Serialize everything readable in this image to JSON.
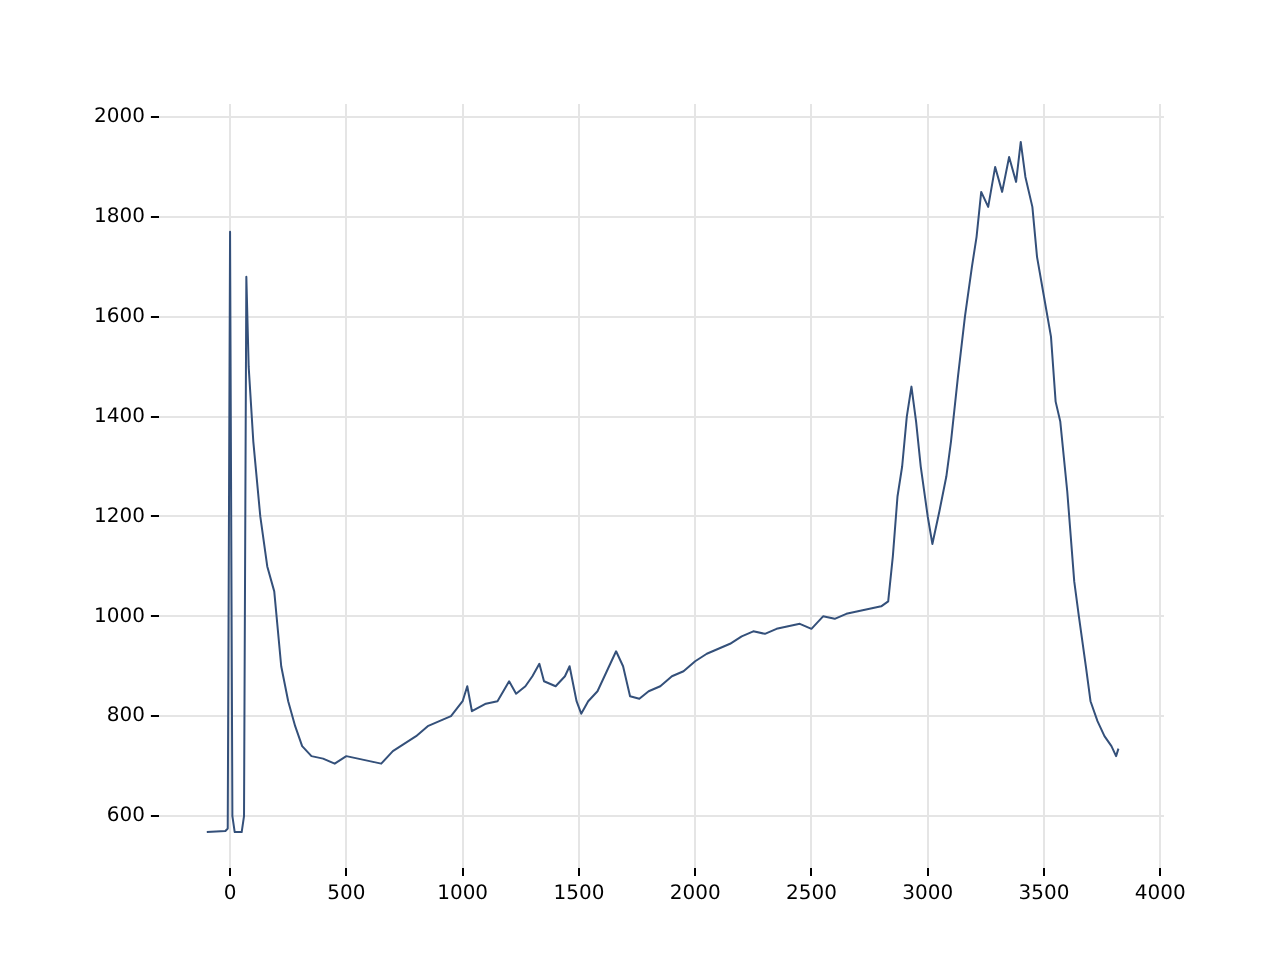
{
  "chart_data": {
    "type": "line",
    "x": [
      -100,
      -20,
      -10,
      0,
      10,
      20,
      50,
      60,
      70,
      80,
      100,
      130,
      160,
      190,
      220,
      250,
      280,
      310,
      350,
      400,
      450,
      500,
      550,
      600,
      650,
      700,
      750,
      800,
      850,
      900,
      950,
      1000,
      1020,
      1040,
      1100,
      1150,
      1200,
      1230,
      1270,
      1300,
      1330,
      1350,
      1400,
      1440,
      1460,
      1490,
      1510,
      1540,
      1580,
      1620,
      1660,
      1690,
      1720,
      1760,
      1800,
      1850,
      1900,
      1950,
      2000,
      2050,
      2100,
      2150,
      2200,
      2250,
      2300,
      2350,
      2400,
      2450,
      2500,
      2550,
      2600,
      2650,
      2700,
      2750,
      2800,
      2830,
      2850,
      2870,
      2890,
      2910,
      2930,
      2950,
      2970,
      3000,
      3020,
      3050,
      3080,
      3100,
      3130,
      3160,
      3190,
      3210,
      3230,
      3260,
      3290,
      3320,
      3350,
      3380,
      3400,
      3420,
      3450,
      3470,
      3500,
      3530,
      3550,
      3570,
      3600,
      3630,
      3650,
      3680,
      3700,
      3730,
      3760,
      3790,
      3810,
      3820
    ],
    "series": [
      {
        "color": "#34507a",
        "values": [
          568,
          570,
          575,
          1770,
          600,
          568,
          568,
          600,
          1680,
          1500,
          1350,
          1200,
          1100,
          1050,
          900,
          830,
          780,
          740,
          720,
          715,
          705,
          720,
          715,
          710,
          705,
          730,
          745,
          760,
          780,
          790,
          800,
          830,
          860,
          810,
          825,
          830,
          870,
          845,
          860,
          880,
          905,
          870,
          860,
          880,
          900,
          830,
          805,
          830,
          850,
          890,
          930,
          900,
          840,
          835,
          850,
          860,
          880,
          890,
          910,
          925,
          935,
          945,
          960,
          970,
          965,
          975,
          980,
          985,
          975,
          1000,
          995,
          1005,
          1010,
          1015,
          1020,
          1030,
          1120,
          1240,
          1300,
          1400,
          1460,
          1390,
          1300,
          1200,
          1145,
          1210,
          1280,
          1350,
          1480,
          1600,
          1700,
          1760,
          1850,
          1820,
          1900,
          1850,
          1920,
          1870,
          1950,
          1880,
          1820,
          1720,
          1640,
          1560,
          1430,
          1390,
          1250,
          1070,
          1000,
          900,
          830,
          790,
          760,
          740,
          720,
          735
        ]
      }
    ],
    "xlim": [
      -306,
      4016
    ],
    "ylim": [
      496,
      2026
    ],
    "xticks": [
      0,
      500,
      1000,
      1500,
      2000,
      2500,
      3000,
      3500,
      4000
    ],
    "yticks": [
      600,
      800,
      1000,
      1200,
      1400,
      1600,
      1800,
      2000
    ],
    "grid": true,
    "legend": false,
    "marker": "none",
    "line_style": "solid"
  }
}
